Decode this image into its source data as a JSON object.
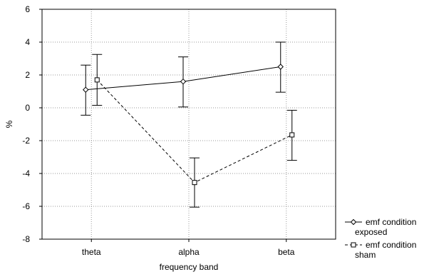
{
  "chart_data": {
    "type": "line",
    "title": "",
    "xlabel": "frequency band",
    "ylabel": "%",
    "categories": [
      "theta",
      "alpha",
      "beta"
    ],
    "ylim": [
      -8,
      6
    ],
    "yticks": [
      6,
      4,
      2,
      0,
      -2,
      -4,
      -6,
      -8
    ],
    "grid": true,
    "error_bars": true,
    "legend_position": "right",
    "series": [
      {
        "name": "emf condition exposed",
        "legend_lines": [
          "emf condition",
          "exposed"
        ],
        "marker": "diamond",
        "line_style": "solid",
        "values": [
          1.1,
          1.6,
          2.5
        ],
        "lower": [
          -0.45,
          0.05,
          0.95
        ],
        "upper": [
          2.6,
          3.1,
          4.0
        ]
      },
      {
        "name": "emf condition sham",
        "legend_lines": [
          "emf condition",
          "sham"
        ],
        "marker": "square",
        "line_style": "dashed",
        "values": [
          1.7,
          -4.55,
          -1.65
        ],
        "lower": [
          0.15,
          -6.05,
          -3.2
        ],
        "upper": [
          3.25,
          -3.05,
          -0.15
        ]
      }
    ]
  }
}
